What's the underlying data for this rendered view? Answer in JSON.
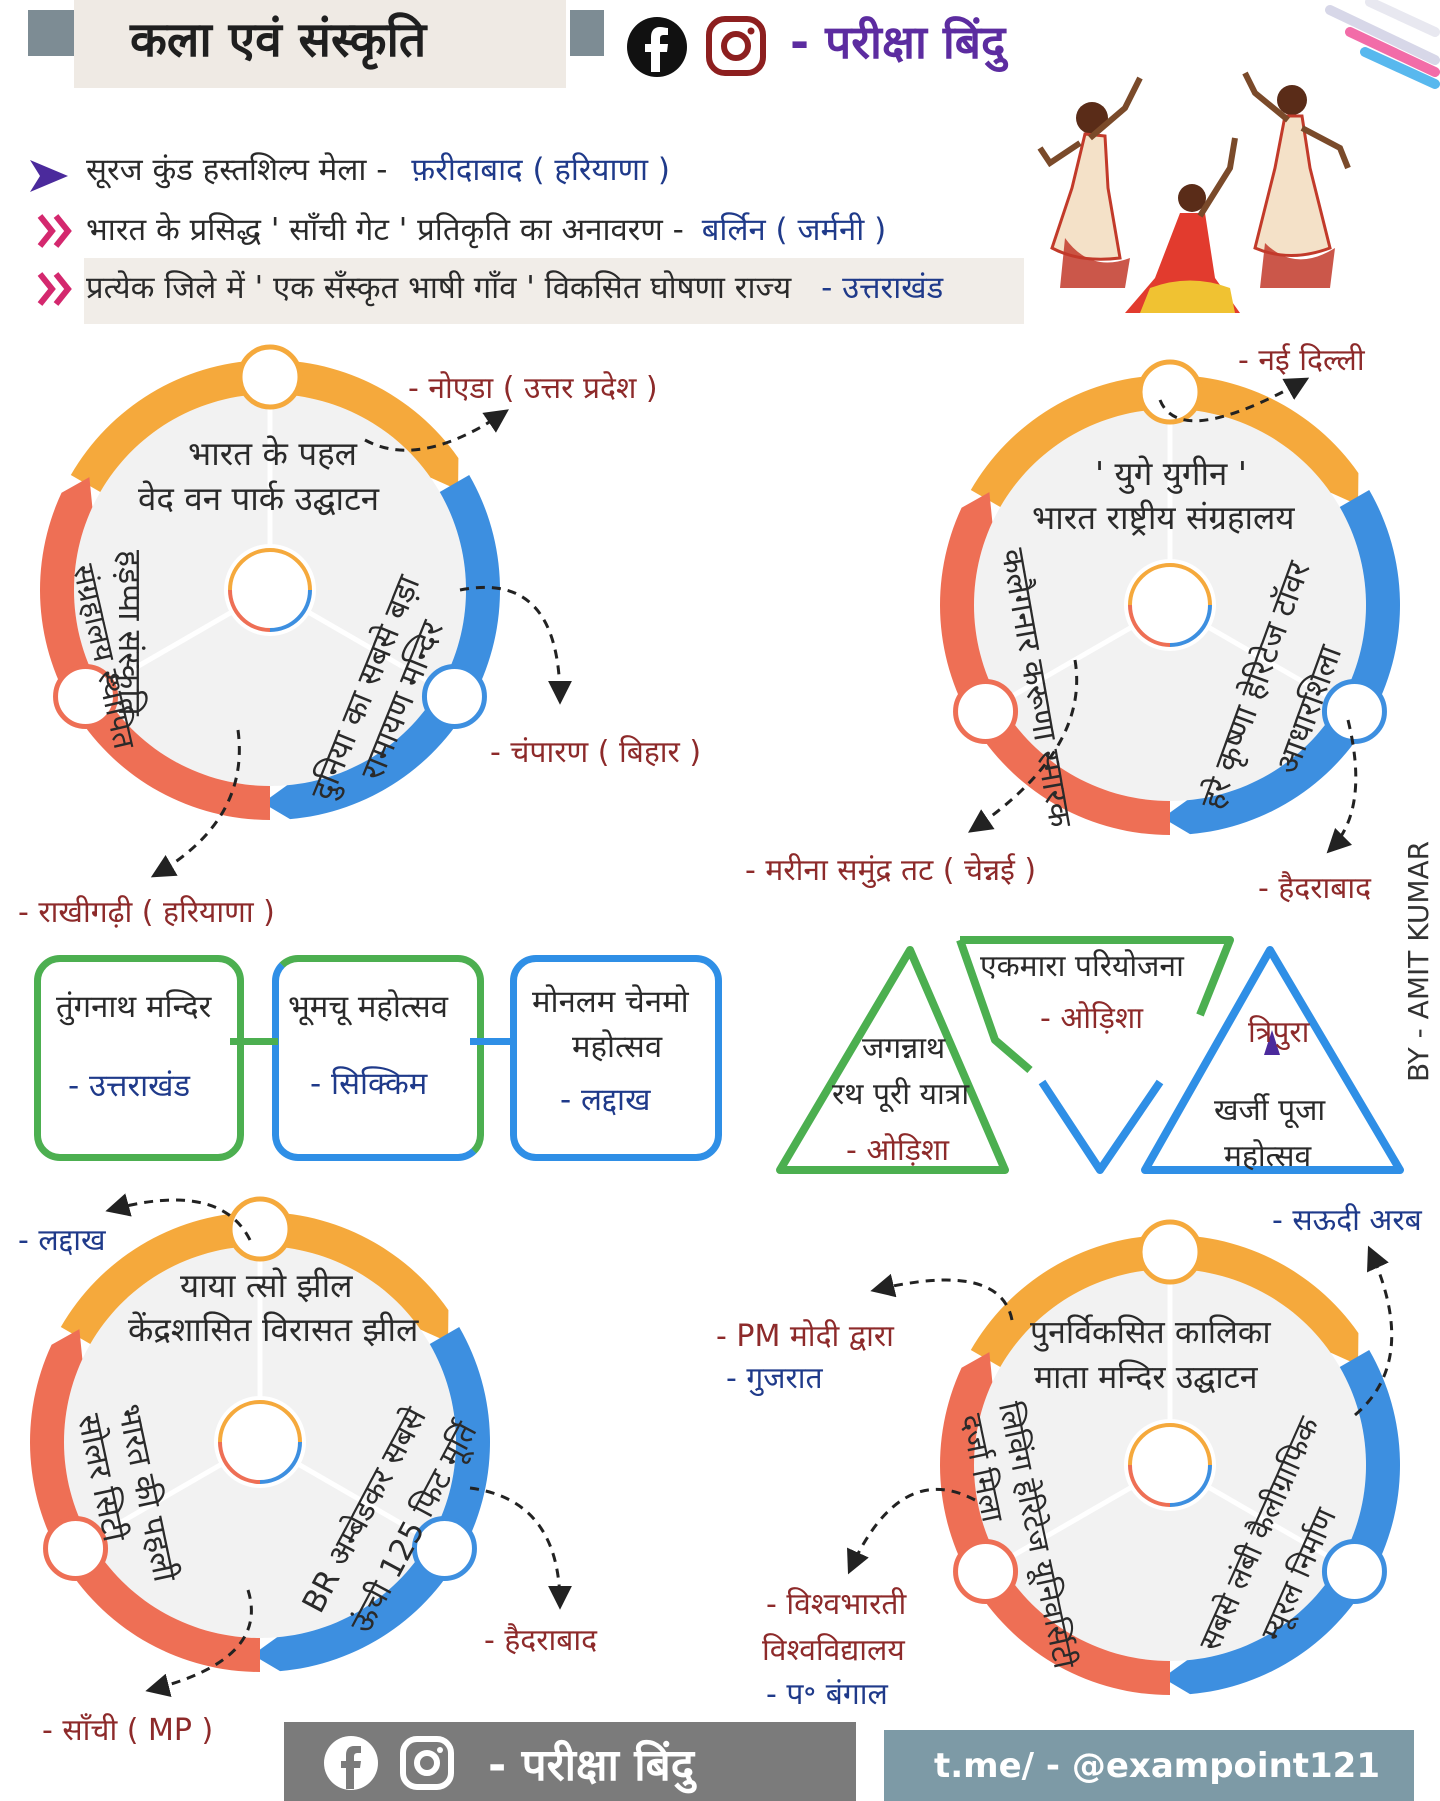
{
  "header": {
    "title": "कला एवं संस्कृति",
    "brand": "- परीक्षा बिंदु",
    "icons": [
      "facebook-icon",
      "instagram-icon"
    ]
  },
  "top_facts": [
    {
      "text": "सूरज कुंड हस्तशिल्प मेला -",
      "answer": "फ़रीदाबाद ( हरियाणा )"
    },
    {
      "text": "भारत के प्रसिद्ध ' साँची गेट ' प्रतिकृति का अनावरण -",
      "answer": "बर्लिन ( जर्मनी )"
    },
    {
      "text": "प्रत्येक जिले में ' एक सँस्कृत भाषी गाँव ' विकसित घोषणा राज्य",
      "answer": "- उत्तराखंड"
    }
  ],
  "wheel1": {
    "top": [
      "भारत के पहल",
      "वेद वन पार्क उद्घाटन"
    ],
    "left": [
      "हड़प्पा संस्कृति",
      "संग्रहालय स्थापित"
    ],
    "right": [
      "दुनिया का सबसे बड़ा",
      "रामायण मन्दिर"
    ],
    "label_top": "- नोएडा ( उत्तर प्रदेश )",
    "label_right": "- चंपारण ( बिहार )",
    "label_bottom": "- राखीगढ़ी ( हरियाणा )"
  },
  "wheel2": {
    "top": [
      "' युगे युगीन '",
      "भारत राष्ट्रीय संग्रहालय"
    ],
    "left": [
      "कलैगनार करूणा स्मारक"
    ],
    "right": [
      "हरे कृष्णा हेरिटेज टॉवर",
      "आधारशिला"
    ],
    "label_top": "- नई दिल्ली",
    "label_left": "- मरीना समुंद्र तट ( चेन्नई )",
    "label_right": "- हैदराबाद"
  },
  "boxes": [
    {
      "title": "तुंगनाथ मन्दिर",
      "place": "- उत्तराखंड",
      "color": "#4caf50"
    },
    {
      "title": "भूमचू महोत्सव",
      "place": "- सिक्किम",
      "color": "#4caf50"
    },
    {
      "title_l1": "मोनलम चेनमो",
      "title_l2": "महोत्सव",
      "place": "- लद्दाख",
      "color": "#2f8fe6"
    }
  ],
  "triangles": {
    "t1": {
      "l1": "जगन्नाथ",
      "l2": "रथ पूरी यात्रा",
      "place": "- ओड़िशा"
    },
    "t2": {
      "l1": "एकमारा परियोजना",
      "place": "- ओड़िशा"
    },
    "t3": {
      "place": "त्रिपुरा",
      "l1": "खर्जी पूजा",
      "l2": "महोत्सव"
    }
  },
  "credit": "BY - AMIT KUMAR",
  "wheel3": {
    "top": [
      "याया त्सो झील",
      "केंद्रशासित विरासत झील"
    ],
    "left": [
      "भारत की पहली",
      "सोलर सिटी"
    ],
    "right": [
      "BR अम्बेडकर सबसे",
      "ऊंची 125 फिट मूर्ति"
    ],
    "label_top": "- लद्दाख",
    "label_right": "- हैदराबाद",
    "label_bottom": "- साँची ( MP )"
  },
  "wheel4": {
    "top": [
      "पुनर्विकसित कालिका",
      "माता मन्दिर उद्घाटन"
    ],
    "left": [
      "लिविंग हेरिटेज यूनिवर्सिटी",
      "दर्जा मिला"
    ],
    "right": [
      "सबसे लंबी कैलीग्राफिक",
      "म्यूरल निर्माण"
    ],
    "label_top_right": "- सऊदी अरब",
    "label_top_left_1": "- PM मोदी द्वारा",
    "label_top_left_2": "- गुजरात",
    "label_left_1": "- विश्वभारती",
    "label_left_2": "विश्वविद्यालय",
    "label_left_3": "- प॰ बंगाल"
  },
  "footer": {
    "brand": "- परीक्षा बिंदु",
    "telegram": "t.me/ - @exampoint121"
  },
  "colors": {
    "orange": "#f5a93c",
    "blue": "#3d8fe0",
    "red": "#ee6f55",
    "green": "#4caf50",
    "purple": "#5c2ca0",
    "maroon": "#8d2a2a",
    "navy": "#1f3a8a"
  }
}
